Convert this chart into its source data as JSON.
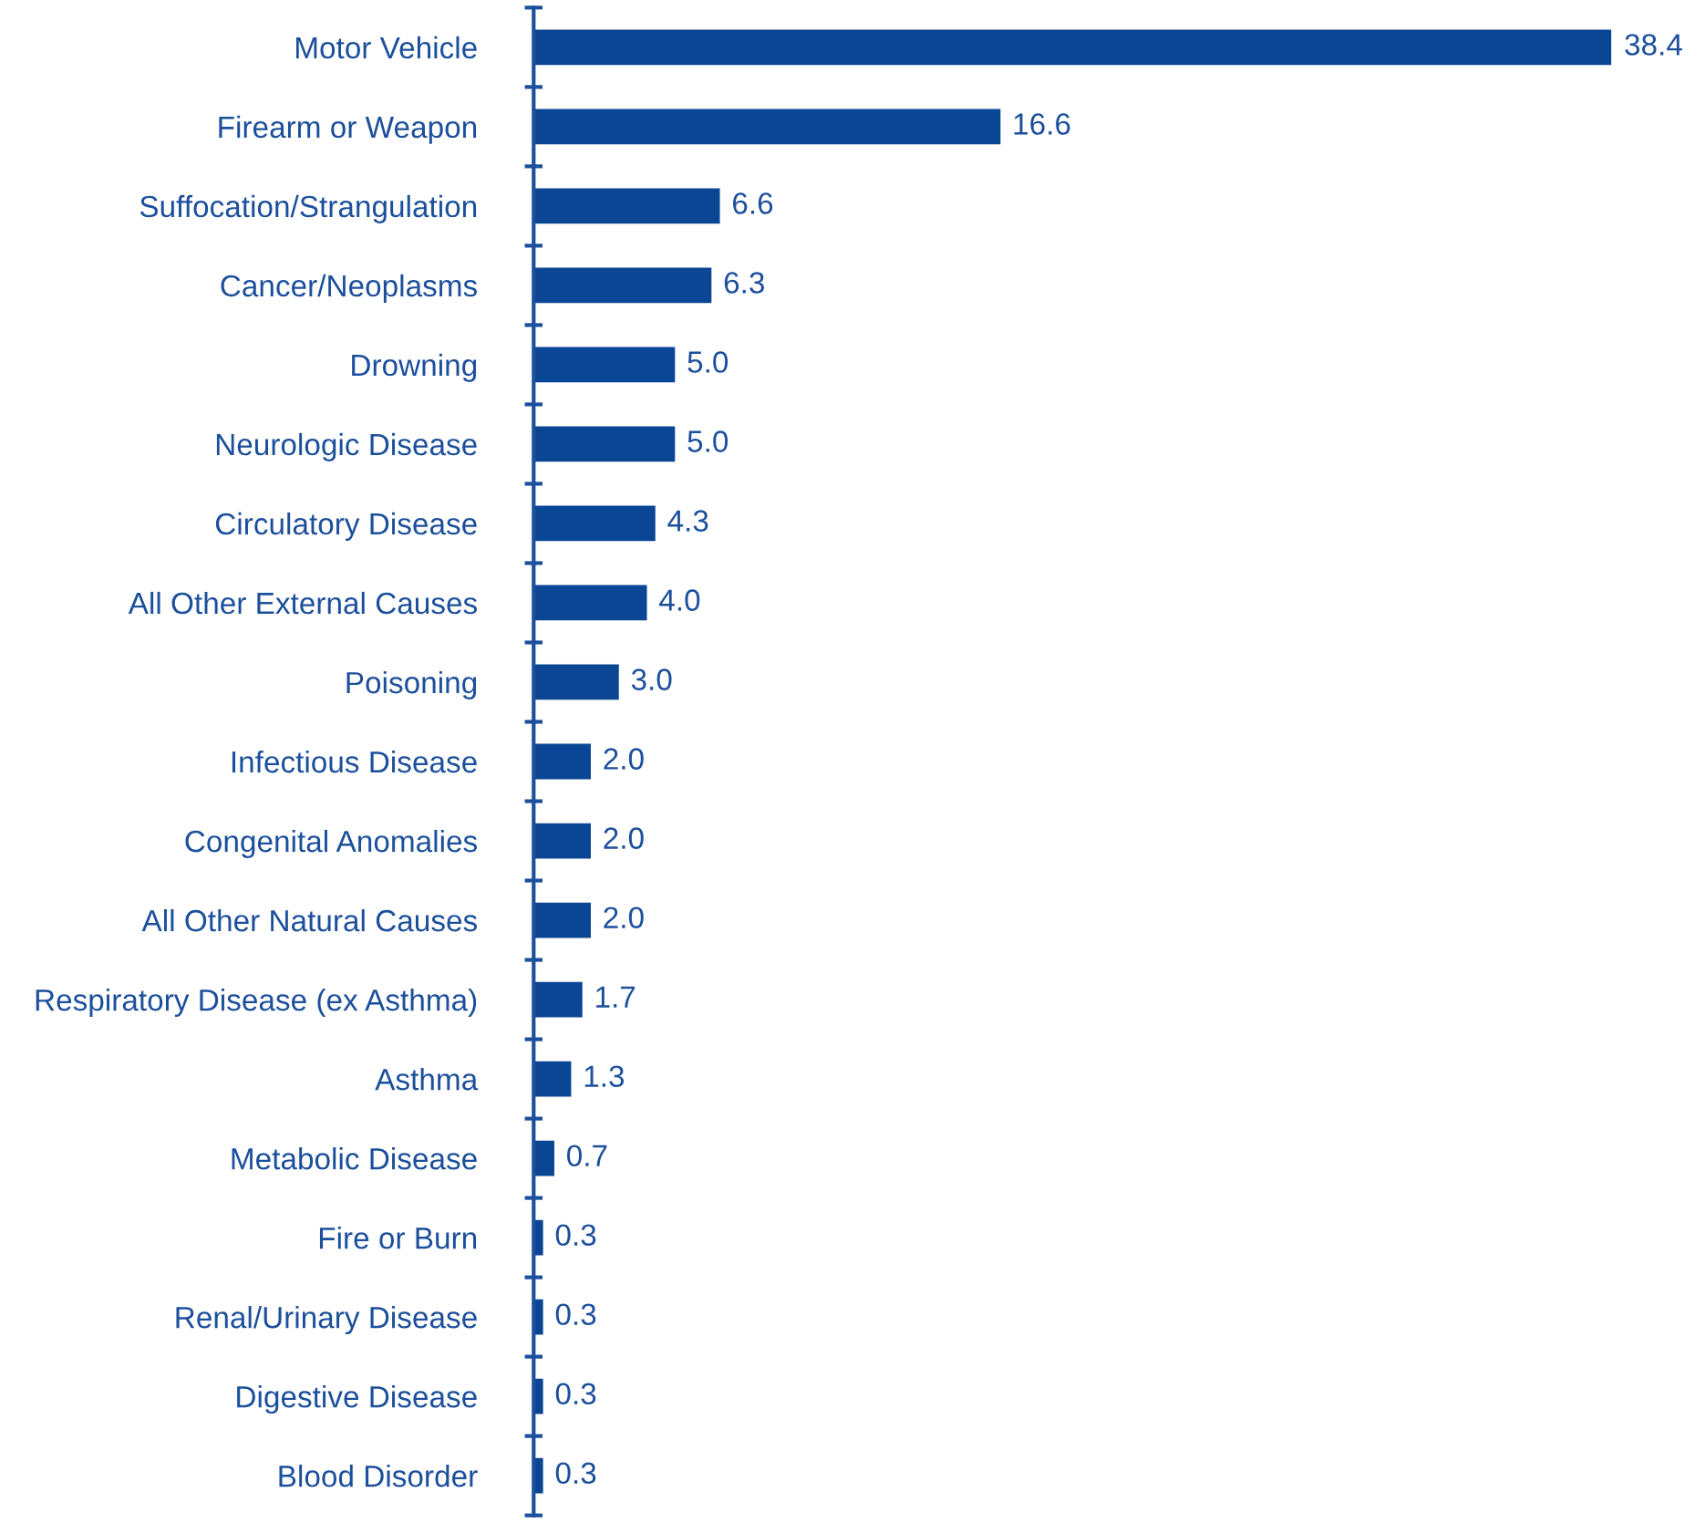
{
  "chart_data": {
    "type": "bar",
    "orientation": "horizontal",
    "categories": [
      "Motor Vehicle",
      "Firearm or Weapon",
      "Suffocation/Strangulation",
      "Cancer/Neoplasms",
      "Drowning",
      "Neurologic Disease",
      "Circulatory Disease",
      "All Other External Causes",
      "Poisoning",
      "Infectious Disease",
      "Congenital Anomalies",
      "All Other Natural Causes",
      "Respiratory Disease (ex Asthma)",
      "Asthma",
      "Metabolic Disease",
      "Fire or Burn",
      "Renal/Urinary Disease",
      "Digestive Disease",
      "Blood Disorder"
    ],
    "values": [
      38.4,
      16.6,
      6.6,
      6.3,
      5.0,
      5.0,
      4.3,
      4.0,
      3.0,
      2.0,
      2.0,
      2.0,
      1.7,
      1.3,
      0.7,
      0.3,
      0.3,
      0.3,
      0.3
    ],
    "value_labels": [
      "38.4",
      "16.6",
      "6.6",
      "6.3",
      "5.0",
      "5.0",
      "4.3",
      "4.0",
      "3.0",
      "2.0",
      "2.0",
      "2.0",
      "1.7",
      "1.3",
      "0.7",
      "0.3",
      "0.3",
      "0.3",
      "0.3"
    ],
    "color": "#0b4694",
    "grid": false,
    "legend": false,
    "tick_labels": "y"
  }
}
